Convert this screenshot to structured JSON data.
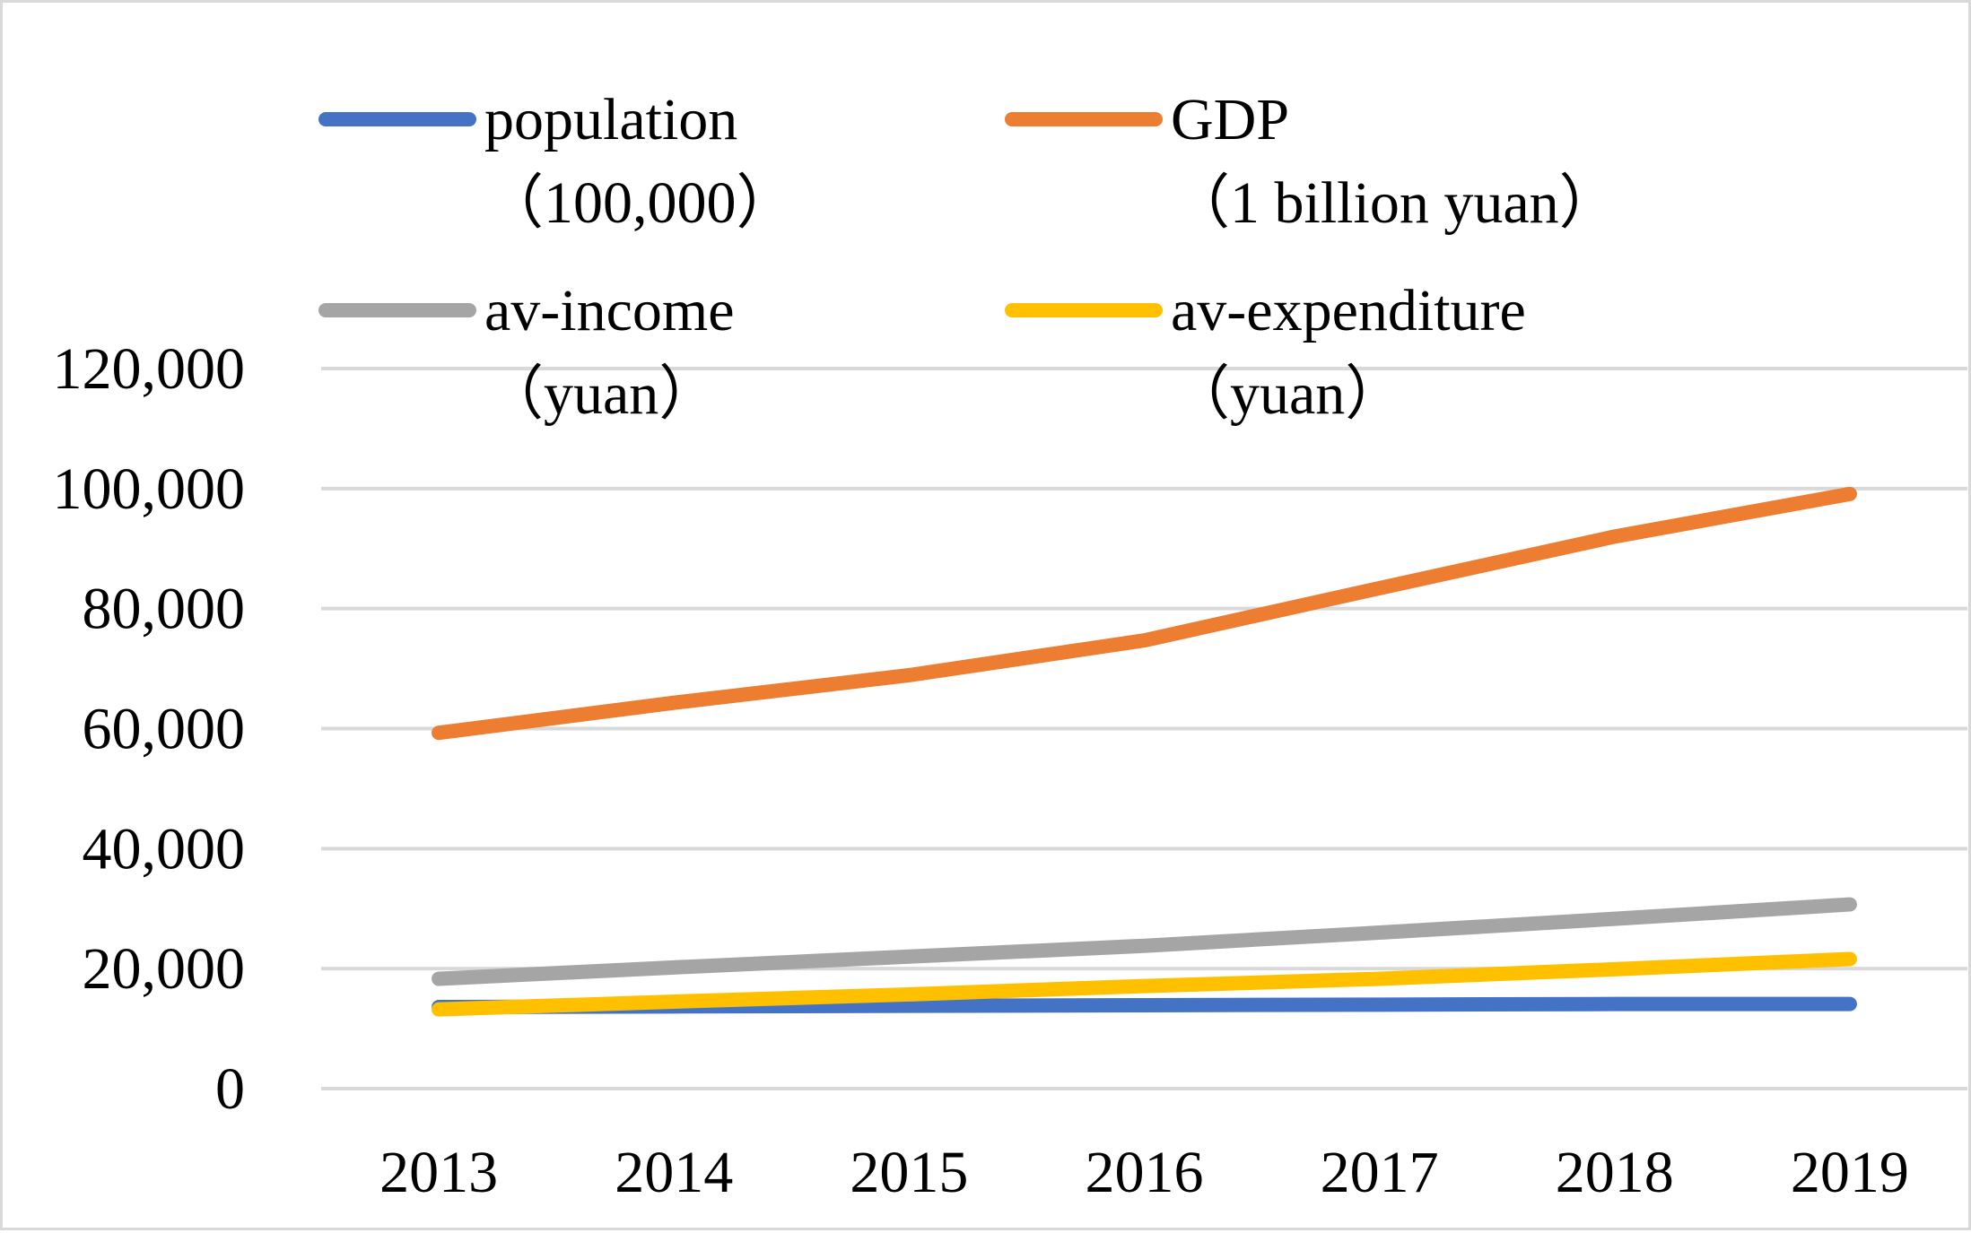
{
  "chart_data": {
    "type": "line",
    "title": "",
    "xlabel": "",
    "ylabel": "",
    "categories": [
      "2013",
      "2014",
      "2015",
      "2016",
      "2017",
      "2018",
      "2019"
    ],
    "ylim": [
      0,
      120000
    ],
    "yticks": [
      0,
      20000,
      40000,
      60000,
      80000,
      100000,
      120000
    ],
    "ytick_labels": [
      "0",
      "20,000",
      "40,000",
      "60,000",
      "80,000",
      "100,000",
      "120,000"
    ],
    "grid": true,
    "legend_position": "top",
    "series": [
      {
        "name": "population",
        "unit": "（100,000）",
        "color": "#4472c4",
        "values": [
          13600,
          13700,
          13800,
          13900,
          14000,
          14100,
          14100
        ]
      },
      {
        "name": "GDP",
        "unit": "（1 billion yuan）",
        "color": "#ed7d31",
        "values": [
          59300,
          64300,
          68900,
          74700,
          83400,
          92000,
          99100
        ]
      },
      {
        "name": "av-income",
        "unit": "（yuan）",
        "color": "#a5a5a5",
        "values": [
          18300,
          20200,
          22000,
          23800,
          26000,
          28300,
          30700
        ]
      },
      {
        "name": "av-expenditure",
        "unit": "（yuan）",
        "color": "#ffc000",
        "values": [
          13200,
          14500,
          15700,
          17100,
          18300,
          19900,
          21600
        ]
      }
    ]
  }
}
